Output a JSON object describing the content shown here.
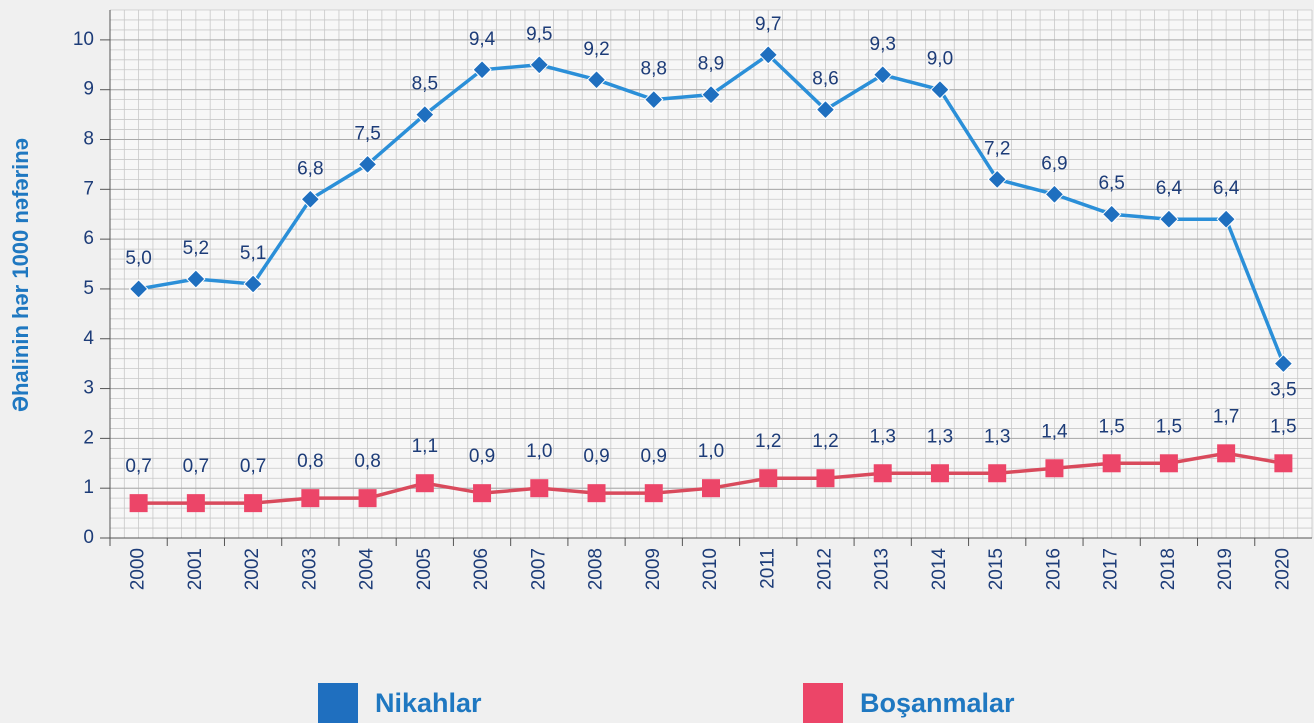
{
  "chart_data": {
    "type": "line",
    "y_label": "Əhalinin hər 1000 nəfərinə",
    "categories": [
      "2000",
      "2001",
      "2002",
      "2003",
      "2004",
      "2005",
      "2006",
      "2007",
      "2008",
      "2009",
      "2010",
      "2011",
      "2012",
      "2013",
      "2014",
      "2015",
      "2016",
      "2017",
      "2018",
      "2019",
      "2020"
    ],
    "series": [
      {
        "name": "Nikahlar",
        "color": "#2b8fd8",
        "marker": "diamond",
        "marker_color": "#1f6fbf",
        "values": [
          5.0,
          5.2,
          5.1,
          6.8,
          7.5,
          8.5,
          9.4,
          9.5,
          9.2,
          8.8,
          8.9,
          9.7,
          8.6,
          9.3,
          9.0,
          7.2,
          6.9,
          6.5,
          6.4,
          6.4,
          3.5
        ],
        "value_labels": [
          "5,0",
          "5,2",
          "5,1",
          "6,8",
          "7,5",
          "8,5",
          "9,4",
          "9,5",
          "9,2",
          "8,8",
          "8,9",
          "9,7",
          "8,6",
          "9,3",
          "9,0",
          "7,2",
          "6,9",
          "6,5",
          "6,4",
          "6,4",
          "3,5"
        ]
      },
      {
        "name": "Boşanmalar",
        "color": "#d94a5c",
        "marker": "square",
        "marker_color": "#ec4568",
        "values": [
          0.7,
          0.7,
          0.7,
          0.8,
          0.8,
          1.1,
          0.9,
          1.0,
          0.9,
          0.9,
          1.0,
          1.2,
          1.2,
          1.3,
          1.3,
          1.3,
          1.4,
          1.5,
          1.5,
          1.7,
          1.5
        ],
        "value_labels": [
          "0,7",
          "0,7",
          "0,7",
          "0,8",
          "0,8",
          "1,1",
          "0,9",
          "1,0",
          "0,9",
          "0,9",
          "1,0",
          "1,2",
          "1,2",
          "1,3",
          "1,3",
          "1,3",
          "1,4",
          "1,5",
          "1,5",
          "1,7",
          "1,5"
        ]
      }
    ],
    "ylim": [
      0,
      10.6
    ],
    "yticks": [
      0,
      1,
      2,
      3,
      4,
      5,
      6,
      7,
      8,
      9,
      10
    ],
    "grid": true,
    "legend": "bottom"
  }
}
